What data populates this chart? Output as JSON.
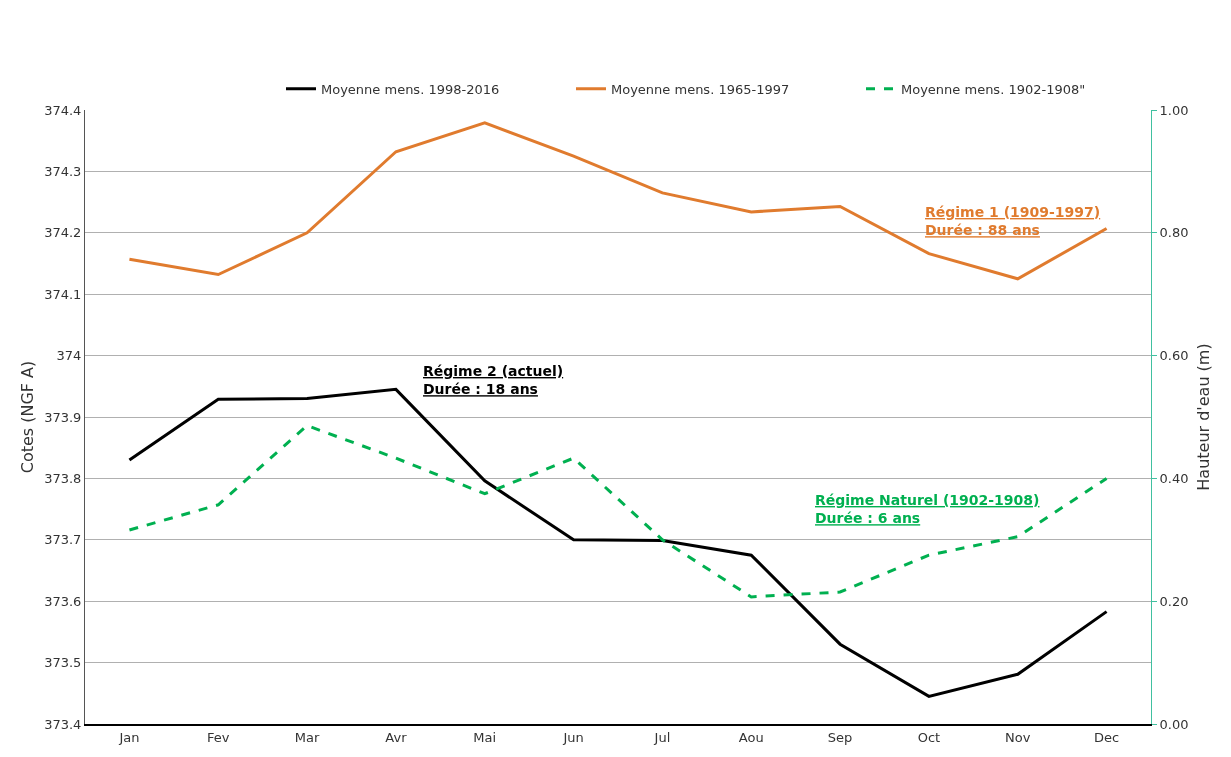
{
  "chart_data": {
    "type": "line",
    "categories": [
      "Jan",
      "Fev",
      "Mar",
      "Avr",
      "Mai",
      "Jun",
      "Jul",
      "Aou",
      "Sep",
      "Oct",
      "Nov",
      "Dec"
    ],
    "series": [
      {
        "name": "Moyenne mens. 1998-2016",
        "color": "#000000",
        "line_style": "solid",
        "values": [
          373.83,
          373.929,
          373.93,
          373.945,
          373.796,
          373.7,
          373.699,
          373.675,
          373.53,
          373.445,
          373.481,
          373.583
        ]
      },
      {
        "name": "Moyenne mens. 1965-1997",
        "color": "#e07b2e",
        "line_style": "solid",
        "values": [
          374.157,
          374.132,
          374.2,
          374.332,
          374.379,
          374.325,
          374.265,
          374.234,
          374.243,
          374.166,
          374.125,
          374.207
        ]
      },
      {
        "name": "Moyenne mens. 1902-1908\"",
        "color": "#00b050",
        "line_style": "dashed",
        "values": [
          373.716,
          373.757,
          373.886,
          373.833,
          373.775,
          373.833,
          373.7,
          373.607,
          373.615,
          373.675,
          373.705,
          373.8
        ]
      }
    ],
    "ylabel": "Cotes (NGF A)",
    "y2label": "Hauteur d'eau (m)",
    "ylim": [
      373.4,
      374.4
    ],
    "yticks": [
      373.4,
      373.5,
      373.6,
      373.7,
      373.8,
      373.9,
      374,
      374.1,
      374.2,
      374.3,
      374.4
    ],
    "y2lim": [
      0,
      1
    ],
    "y2ticks": [
      {
        "value": 0,
        "label": "0.00"
      },
      {
        "value": 0.2,
        "label": "0.20"
      },
      {
        "value": 0.4,
        "label": "0.40"
      },
      {
        "value": 0.6,
        "label": "0.60"
      },
      {
        "value": 0.8,
        "label": "0.80"
      },
      {
        "value": 1,
        "label": "1.00"
      }
    ],
    "annotations": [
      "Régime 2 (actuel)\nDurée : 18 ans",
      "Régime 1 (1909-1997)\nDurée : 88 ans",
      "Régime Naturel (1902-1908)\nDurée : 6 ans"
    ],
    "grid": "y",
    "legend": "top right",
    "marker": "none"
  }
}
